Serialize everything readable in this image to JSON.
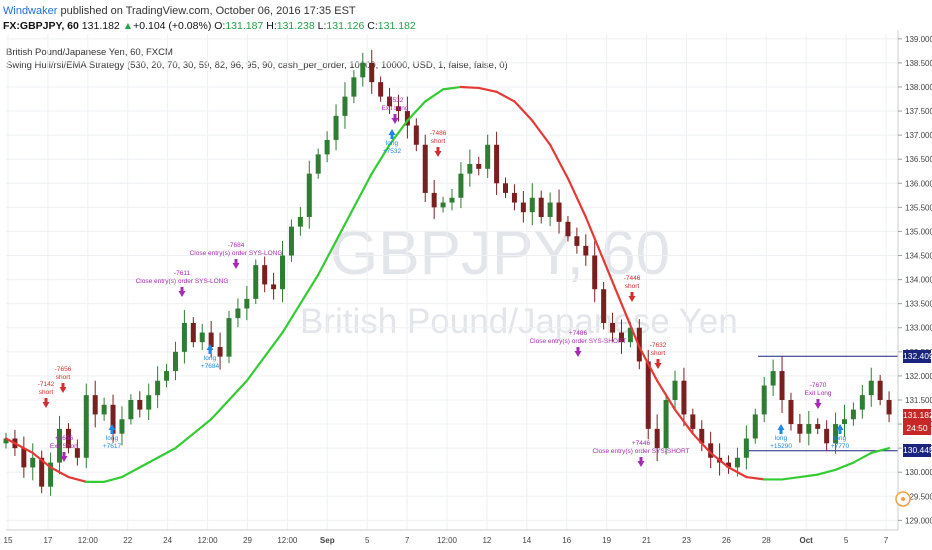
{
  "header": {
    "author": "Windwaker",
    "published": "published on TradingView.com, October 06, 2016 17:35 EST",
    "symbol_line": "FX:GBPJPY, 60",
    "last": "131.182",
    "change": "+0.104 (+0.08%)",
    "o_label": "O:",
    "o_value": "131.187",
    "h_label": "H:",
    "h_value": "131.238",
    "l_label": "L:",
    "l_value": "131.126",
    "c_label": "C:",
    "c_value": "131.182"
  },
  "info": {
    "title": "British Pound/Japanese Yen, 60, FXCM",
    "strategy": "Swing Hull/rsi/EMA Strategy (530, 20, 70, 30, 59, 82, 96, 95, 90, cash_per_order, 10000, 10000, USD, 1, false, false, 0)"
  },
  "watermark": {
    "line1": "GBPJPY, 60",
    "line2": "British Pound/Japanese Yen"
  },
  "price_tags": {
    "upper": "132.409",
    "current": "131.182",
    "countdown": "24:50",
    "lower": "130.445"
  },
  "colors": {
    "up_candle": "#2e7d32",
    "down_candle": "#7a1f1f",
    "ema_green": "#33cc33",
    "ema_red": "#e53935",
    "signal_long": "#1e88e5",
    "signal_short": "#d32f2f",
    "signal_close": "#a62ab3",
    "hline": "#1a237e"
  },
  "chart_data": {
    "type": "line",
    "title": "British Pound/Japanese Yen, 60, FXCM",
    "x_tick_labels": [
      "15",
      "17",
      "12:00",
      "22",
      "24",
      "12:00",
      "29",
      "12:00",
      "Sep",
      "5",
      "7",
      "12:00",
      "12",
      "14",
      "16",
      "19",
      "21",
      "23",
      "26",
      "28",
      "Oct",
      "5",
      "7"
    ],
    "y_tick_labels": [
      "129.000",
      "129.500",
      "130.000",
      "130.500",
      "131.000",
      "131.500",
      "132.000",
      "132.500",
      "133.000",
      "133.500",
      "134.000",
      "134.500",
      "135.000",
      "135.500",
      "136.000",
      "136.500",
      "137.000",
      "137.500",
      "138.000",
      "138.500",
      "139.000"
    ],
    "ylim": [
      128.8,
      139.1
    ],
    "xlim": [
      0,
      100
    ],
    "series": [
      {
        "kind": "price",
        "x": [
          0,
          1,
          2,
          3,
          4,
          5,
          6,
          7,
          8,
          9,
          10,
          11,
          12,
          13,
          14,
          15,
          16,
          17,
          18,
          19,
          20,
          21,
          22,
          23,
          24,
          25,
          26,
          27,
          28,
          29,
          30,
          31,
          32,
          33,
          34,
          35,
          36,
          37,
          38,
          39,
          40,
          41,
          42,
          43,
          44,
          45,
          46,
          47,
          48,
          49,
          50,
          51,
          52,
          53,
          54,
          55,
          56,
          57,
          58,
          59,
          60,
          61,
          62,
          63,
          64,
          65,
          66,
          67,
          68,
          69,
          70,
          71,
          72,
          73,
          74,
          75,
          76,
          77,
          78,
          79,
          80,
          81,
          82,
          83,
          84,
          85,
          86,
          87,
          88,
          89,
          90,
          91,
          92,
          93,
          94,
          95,
          96,
          97,
          98,
          99
        ],
        "values": [
          130.7,
          130.5,
          130.1,
          130.3,
          129.7,
          130.2,
          130.9,
          130.5,
          130.3,
          131.6,
          131.2,
          131.4,
          130.8,
          131.1,
          131.5,
          131.3,
          131.6,
          131.9,
          132.1,
          132.5,
          133.1,
          132.7,
          132.9,
          132.6,
          132.4,
          133.2,
          133.4,
          133.6,
          134.3,
          133.9,
          133.8,
          134.5,
          135.1,
          135.3,
          136.2,
          136.6,
          136.9,
          137.4,
          137.8,
          138.2,
          138.5,
          138.1,
          137.8,
          137.6,
          137.5,
          137.2,
          136.8,
          135.8,
          135.5,
          135.6,
          135.7,
          136.2,
          136.4,
          136.3,
          136.8,
          136.0,
          135.8,
          135.6,
          135.4,
          135.7,
          135.3,
          135.6,
          135.2,
          134.9,
          134.7,
          134.5,
          133.8,
          133.1,
          132.9,
          132.7,
          133.0,
          132.3,
          130.9,
          130.5,
          131.5,
          131.9,
          131.2,
          130.9,
          130.6,
          130.3,
          130.2,
          130.1,
          130.3,
          130.7,
          131.2,
          131.8,
          132.1,
          131.5,
          131.0,
          130.8,
          131.0,
          130.9,
          130.6,
          131.0,
          131.1,
          131.3,
          131.6,
          131.9,
          131.5,
          131.2
        ]
      },
      {
        "kind": "ema",
        "x": [
          0,
          3,
          5,
          7,
          9,
          11,
          13,
          15,
          17,
          19,
          21,
          23,
          25,
          27,
          29,
          31,
          33,
          35,
          37,
          39,
          41,
          43,
          45,
          47,
          49,
          51,
          53,
          55,
          57,
          59,
          61,
          63,
          65,
          67,
          69,
          71,
          73,
          75,
          77,
          79,
          81,
          83,
          85,
          87,
          89,
          91,
          93,
          95,
          97,
          99
        ],
        "values": [
          130.7,
          130.4,
          130.1,
          129.9,
          129.8,
          129.8,
          129.9,
          130.1,
          130.3,
          130.5,
          130.8,
          131.1,
          131.5,
          131.9,
          132.4,
          132.9,
          133.5,
          134.1,
          134.8,
          135.5,
          136.2,
          136.8,
          137.3,
          137.7,
          137.95,
          138.0,
          137.98,
          137.9,
          137.7,
          137.3,
          136.8,
          136.1,
          135.3,
          134.4,
          133.5,
          132.6,
          131.9,
          131.3,
          130.8,
          130.4,
          130.1,
          129.9,
          129.85,
          129.85,
          129.9,
          129.95,
          130.05,
          130.2,
          130.4,
          130.5
        ]
      }
    ],
    "hlines": [
      132.409,
      130.445
    ],
    "signals": [
      {
        "label": "short",
        "pnl": "-7142"
      },
      {
        "label": "short",
        "pnl": "-7656"
      },
      {
        "label": "Exit Short",
        "pnl": "+7656"
      },
      {
        "label": "long",
        "pnl": "+7617"
      },
      {
        "label": "Close entry(s) order SYS-LONG",
        "pnl": "-7611"
      },
      {
        "label": "long",
        "pnl": "+7684"
      },
      {
        "label": "Close entry(s) order SYS-LONG",
        "pnl": "-7684"
      },
      {
        "label": "Exit Long",
        "pnl": "-7532"
      },
      {
        "label": "long",
        "pnl": "+7532"
      },
      {
        "label": "short",
        "pnl": "-7486"
      },
      {
        "label": "Close entry(s) order SYS-SHORT",
        "pnl": "+7486"
      },
      {
        "label": "short",
        "pnl": "-7446"
      },
      {
        "label": "Close entry(s) order SYS-SHORT",
        "pnl": "+7446"
      },
      {
        "label": "short",
        "pnl": "-7632"
      },
      {
        "label": "long",
        "pnl": "+15290"
      },
      {
        "label": "Exit Long",
        "pnl": "-7670"
      },
      {
        "label": "long",
        "pnl": "+7770"
      }
    ]
  }
}
